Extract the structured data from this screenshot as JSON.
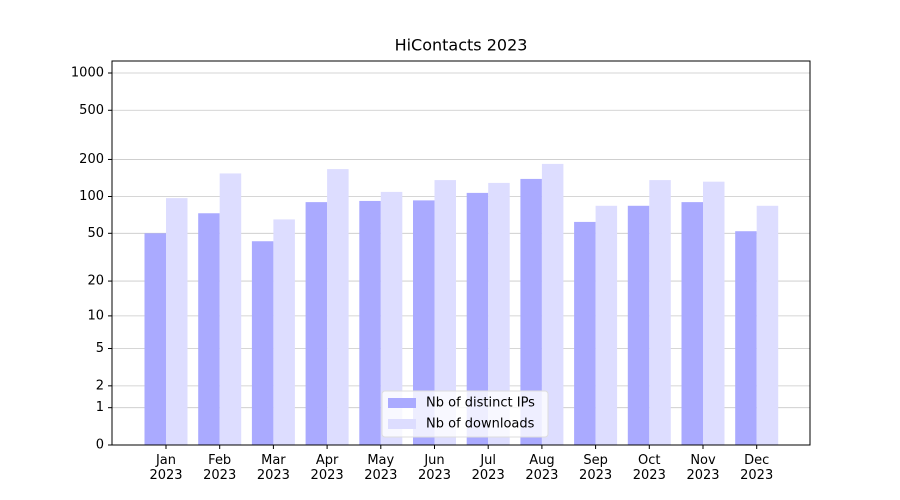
{
  "chart_data": {
    "type": "bar",
    "title": "HiContacts 2023",
    "categories": [
      "Jan\n2023",
      "Feb\n2023",
      "Mar\n2023",
      "Apr\n2023",
      "May\n2023",
      "Jun\n2023",
      "Jul\n2023",
      "Aug\n2023",
      "Sep\n2023",
      "Oct\n2023",
      "Nov\n2023",
      "Dec\n2023"
    ],
    "series": [
      {
        "name": "Nb of distinct IPs",
        "color": "#aaaaff",
        "values": [
          50,
          73,
          43,
          90,
          92,
          93,
          107,
          139,
          62,
          84,
          90,
          52
        ]
      },
      {
        "name": "Nb of downloads",
        "color": "#ddddff",
        "values": [
          97,
          154,
          65,
          167,
          109,
          136,
          129,
          184,
          84,
          136,
          132,
          84
        ]
      }
    ],
    "yscale": "symlog",
    "ylim": [
      0,
      1250
    ],
    "yticks": [
      0,
      1,
      2,
      5,
      10,
      20,
      50,
      100,
      200,
      500,
      1000
    ],
    "grid": true,
    "legend": "lower center"
  }
}
